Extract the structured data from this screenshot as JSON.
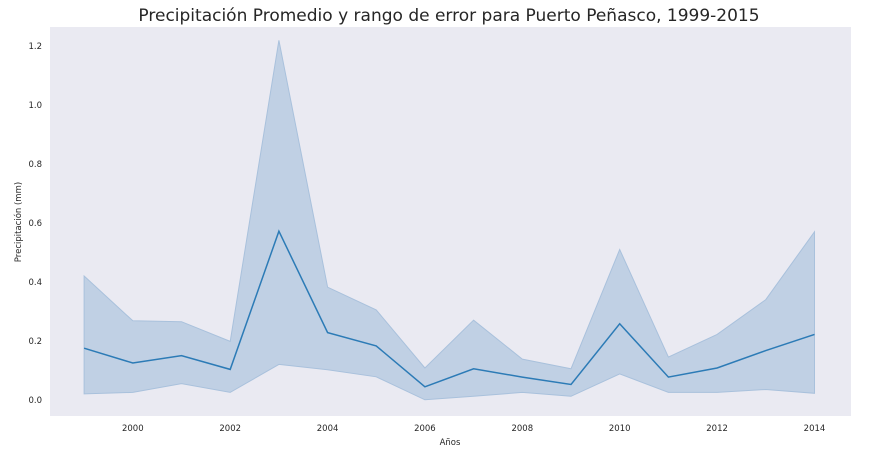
{
  "chart_data": {
    "type": "area",
    "title": "Precipitación Promedio y rango de error para Puerto Peñasco, 1999-2015",
    "xlabel": "Años",
    "ylabel": "Precipitación (mm)",
    "xlim": [
      1998.3,
      2014.75
    ],
    "ylim": [
      -0.055,
      1.265
    ],
    "x_ticks": [
      2000,
      2002,
      2004,
      2006,
      2008,
      2010,
      2012,
      2014
    ],
    "x_tick_labels": [
      "2000",
      "2002",
      "2004",
      "2006",
      "2008",
      "2010",
      "2012",
      "2014"
    ],
    "y_ticks": [
      0.0,
      0.2,
      0.4,
      0.6,
      0.8,
      1.0,
      1.2
    ],
    "y_tick_labels": [
      "0.0",
      "0.2",
      "0.4",
      "0.6",
      "0.8",
      "1.0",
      "1.2"
    ],
    "grid": false,
    "x": [
      1999,
      2000,
      2001,
      2002,
      2003,
      2004,
      2005,
      2006,
      2007,
      2008,
      2009,
      2010,
      2011,
      2012,
      2013,
      2014
    ],
    "series": [
      {
        "values": [
          0.175,
          0.125,
          0.15,
          0.103,
          0.572,
          0.228,
          0.183,
          0.044,
          0.105,
          0.077,
          0.052,
          0.258,
          0.077,
          0.108,
          0.167,
          0.222
        ],
        "lower": [
          0.02,
          0.025,
          0.055,
          0.025,
          0.12,
          0.102,
          0.078,
          0.0,
          0.012,
          0.025,
          0.012,
          0.088,
          0.025,
          0.025,
          0.035,
          0.022
        ],
        "upper": [
          0.42,
          0.268,
          0.265,
          0.198,
          1.22,
          0.382,
          0.305,
          0.108,
          0.27,
          0.138,
          0.105,
          0.51,
          0.145,
          0.222,
          0.34,
          0.57
        ]
      }
    ],
    "colors": {
      "line": "#2c7bb6",
      "band": "#a9c1dc",
      "plot_background": "#eaeaf2"
    }
  }
}
